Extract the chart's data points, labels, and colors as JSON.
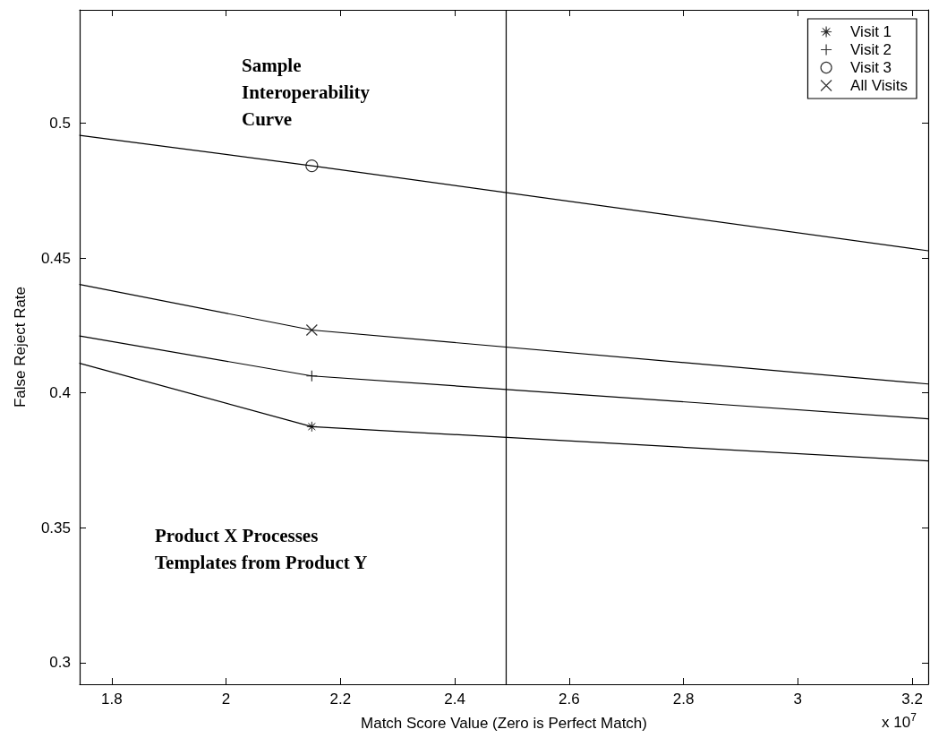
{
  "chart_data": {
    "type": "line",
    "xlabel": "Match Score Value (Zero is Perfect Match)",
    "ylabel": "False Reject Rate",
    "xlim": [
      1.744,
      3.228
    ],
    "xticks": [
      1.8,
      2,
      2.2,
      2.4,
      2.6,
      2.8,
      3,
      3.2
    ],
    "ylim": [
      0.292,
      0.542
    ],
    "yticks": [
      0.3,
      0.35,
      0.4,
      0.45,
      0.5
    ],
    "grid": false,
    "legend": "top right",
    "line_style": "solid",
    "series": [
      {
        "color": "#000000",
        "marker": "none",
        "x": [
          1.744,
          2.15,
          3.228
        ],
        "values": [
          0.411,
          0.3875,
          0.3748
        ]
      },
      {
        "color": "#000000",
        "marker": "none",
        "x": [
          1.744,
          2.15,
          3.228
        ],
        "values": [
          0.4211,
          0.4063,
          0.3904
        ]
      },
      {
        "color": "#000000",
        "marker": "none",
        "x": [
          1.744,
          2.15,
          3.228
        ],
        "values": [
          0.4955,
          0.4842,
          0.4527
        ]
      },
      {
        "color": "#000000",
        "marker": "none",
        "x": [
          1.744,
          2.15,
          3.228
        ],
        "values": [
          0.4402,
          0.4233,
          0.4033
        ]
      },
      {
        "name": "Visit 1",
        "type": "scatter",
        "color": "#000000",
        "marker": "star",
        "x": [
          2.15
        ],
        "values": [
          0.3875
        ]
      },
      {
        "name": "Visit 2",
        "type": "scatter",
        "color": "#000000",
        "marker": "cross",
        "x": [
          2.15
        ],
        "values": [
          0.4063
        ]
      },
      {
        "name": "Visit 3",
        "type": "scatter",
        "color": "#000000",
        "marker": "circle",
        "x": [
          2.15
        ],
        "values": [
          0.4842
        ]
      },
      {
        "name": "All Visits",
        "type": "scatter",
        "color": "#000000",
        "marker": "cross",
        "x": [
          2.15
        ],
        "values": [
          0.4233
        ]
      }
    ],
    "ref_lines": [
      {
        "axis": "x",
        "value": 2.49,
        "color": "#000000"
      }
    ],
    "annotations": [
      "Sample\nInteroperability\nCurve",
      "Product X Processes\nTemplates from Product Y",
      "x 10$^{7}$"
    ]
  }
}
